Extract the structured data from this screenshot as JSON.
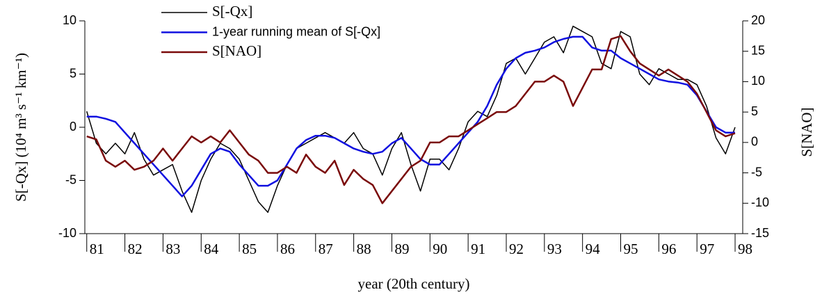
{
  "chart_data": {
    "type": "line",
    "xlabel": "year (20th century)",
    "ylabel": "S[-Qx] (10⁴ m³ s⁻¹ km⁻¹)",
    "y2label": "S[NAO]",
    "xlim": [
      80.95,
      98.2
    ],
    "xticks": [
      81,
      82,
      83,
      84,
      85,
      86,
      87,
      88,
      89,
      90,
      91,
      92,
      93,
      94,
      95,
      96,
      97,
      98
    ],
    "ylim": [
      -10,
      10
    ],
    "yticks": [
      -10,
      -5,
      0,
      5,
      10
    ],
    "y2lim": [
      -15,
      20
    ],
    "y2ticks": [
      -15,
      -10,
      -5,
      0,
      5,
      10,
      15,
      20
    ],
    "x": [
      81,
      81.25,
      81.5,
      81.75,
      82,
      82.25,
      82.5,
      82.75,
      83,
      83.25,
      83.5,
      83.75,
      84,
      84.25,
      84.5,
      84.75,
      85,
      85.25,
      85.5,
      85.75,
      86,
      86.25,
      86.5,
      86.75,
      87,
      87.25,
      87.5,
      87.75,
      88,
      88.25,
      88.5,
      88.75,
      89,
      89.25,
      89.5,
      89.75,
      90,
      90.25,
      90.5,
      90.75,
      91,
      91.25,
      91.5,
      91.75,
      92,
      92.25,
      92.5,
      92.75,
      93,
      93.25,
      93.5,
      93.75,
      94,
      94.25,
      94.5,
      94.75,
      95,
      95.25,
      95.5,
      95.75,
      96,
      96.25,
      96.5,
      96.75,
      97,
      97.25,
      97.5,
      97.75,
      98
    ],
    "series": [
      {
        "name": "S[-Qx]",
        "color": "#000000",
        "values": [
          1.5,
          -1.5,
          -2.5,
          -1.5,
          -2.5,
          -0.5,
          -3,
          -4.5,
          -4,
          -3.5,
          -6,
          -8,
          -5,
          -3,
          -1.5,
          -2,
          -3,
          -5,
          -7,
          -8,
          -5.5,
          -3.5,
          -2,
          -1.5,
          -1,
          -0.5,
          -1,
          -1.5,
          -0.5,
          -2,
          -2.5,
          -4.5,
          -2,
          -0.5,
          -3.5,
          -6,
          -3,
          -3,
          -4,
          -2,
          0.5,
          1.5,
          1,
          3,
          6,
          6.5,
          5,
          6.5,
          8,
          8.5,
          7,
          9.5,
          9,
          8.5,
          6,
          5.5,
          9,
          8.5,
          5,
          4,
          5.5,
          5,
          4.5,
          4.5,
          4,
          2,
          -1,
          -2.5,
          0
        ]
      },
      {
        "name": "1-year running mean of S[-Qx]",
        "color": "#1010e0",
        "values": [
          1,
          1,
          0.8,
          0.5,
          -0.5,
          -1.5,
          -2.5,
          -3.5,
          -4.5,
          -5.5,
          -6.5,
          -5.5,
          -4,
          -2.5,
          -2,
          -2.3,
          -3.5,
          -4.5,
          -5.5,
          -5.5,
          -5,
          -3.5,
          -2,
          -1.2,
          -0.8,
          -0.8,
          -1,
          -1.5,
          -2,
          -2.3,
          -2.5,
          -2.3,
          -1.5,
          -1,
          -2,
          -3,
          -3.5,
          -3.5,
          -2.5,
          -1.5,
          -0.5,
          0.5,
          2,
          4,
          5.5,
          6.5,
          7,
          7.2,
          7.5,
          8,
          8.3,
          8.5,
          8.5,
          7.5,
          7.2,
          7.2,
          6.5,
          6,
          5.5,
          5,
          4.5,
          4.3,
          4.2,
          4,
          3,
          1.5,
          0,
          -0.5,
          -0.5
        ]
      },
      {
        "name": "S[NAO]",
        "color": "#7a0a0a",
        "axis": "y2",
        "values": [
          1,
          0.5,
          -3,
          -4,
          -3,
          -4.5,
          -4,
          -3,
          -1,
          -3,
          -1,
          1,
          0,
          1,
          0,
          2,
          0,
          -2,
          -3,
          -5,
          -5,
          -4,
          -5,
          -2,
          -4,
          -5,
          -3,
          -7,
          -4.5,
          -6,
          -7,
          -10,
          -8,
          -6,
          -4,
          -3,
          0,
          0,
          1,
          1,
          2,
          3,
          4,
          5,
          5,
          6,
          8,
          10,
          10,
          11,
          10,
          6,
          9,
          12,
          12,
          17,
          17.5,
          15,
          13,
          12,
          11,
          12,
          11,
          10,
          8,
          5,
          2,
          1,
          1.5
        ]
      }
    ]
  }
}
